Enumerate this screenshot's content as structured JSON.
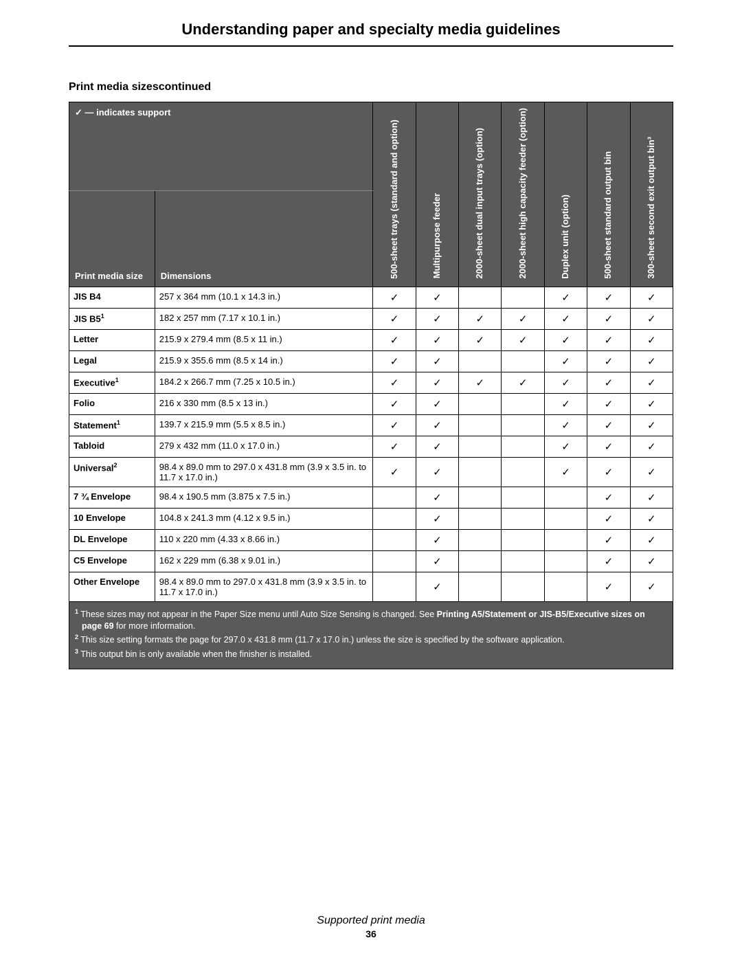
{
  "colors": {
    "header_bg": "#5a5a5a",
    "header_fg": "#ffffff",
    "border": "#000000",
    "page_bg": "#ffffff"
  },
  "fonts": {
    "body_family": "Arial, Helvetica, sans-serif",
    "title_size_pt": 16,
    "section_title_size_pt": 12,
    "cell_size_pt": 10
  },
  "page_title": "Understanding paper and specialty media guidelines",
  "section_title": "Print media sizescontinued",
  "legend": "✓ — indicates support",
  "header": {
    "size_label": "Print media size",
    "dim_label": "Dimensions",
    "cols": [
      "500-sheet trays (standard and option)",
      "Multipurpose feeder",
      "2000-sheet dual input trays (option)",
      "2000-sheet high capacity feeder (option)",
      "Duplex unit (option)",
      "500-sheet standard output bin",
      "300-sheet second exit output bin³"
    ]
  },
  "rows": [
    {
      "name": "JIS B4",
      "sup": "",
      "dim": "257 x 364 mm (10.1 x 14.3 in.)",
      "v": [
        "✓",
        "✓",
        "",
        "",
        "✓",
        "✓",
        "✓"
      ]
    },
    {
      "name": "JIS B5",
      "sup": "1",
      "dim": "182 x 257 mm (7.17 x 10.1 in.)",
      "v": [
        "✓",
        "✓",
        "✓",
        "✓",
        "✓",
        "✓",
        "✓"
      ]
    },
    {
      "name": "Letter",
      "sup": "",
      "dim": "215.9 x 279.4 mm (8.5 x 11 in.)",
      "v": [
        "✓",
        "✓",
        "✓",
        "✓",
        "✓",
        "✓",
        "✓"
      ]
    },
    {
      "name": "Legal",
      "sup": "",
      "dim": "215.9 x 355.6 mm (8.5 x 14 in.)",
      "v": [
        "✓",
        "✓",
        "",
        "",
        "✓",
        "✓",
        "✓"
      ]
    },
    {
      "name": "Executive",
      "sup": "1",
      "dim": "184.2 x 266.7 mm (7.25 x 10.5 in.)",
      "v": [
        "✓",
        "✓",
        "✓",
        "✓",
        "✓",
        "✓",
        "✓"
      ]
    },
    {
      "name": "Folio",
      "sup": "",
      "dim": "216 x 330 mm (8.5 x 13 in.)",
      "v": [
        "✓",
        "✓",
        "",
        "",
        "✓",
        "✓",
        "✓"
      ]
    },
    {
      "name": "Statement",
      "sup": "1",
      "dim": "139.7 x 215.9 mm (5.5 x 8.5 in.)",
      "v": [
        "✓",
        "✓",
        "",
        "",
        "✓",
        "✓",
        "✓"
      ]
    },
    {
      "name": "Tabloid",
      "sup": "",
      "dim": "279 x 432 mm (11.0 x 17.0 in.)",
      "v": [
        "✓",
        "✓",
        "",
        "",
        "✓",
        "✓",
        "✓"
      ]
    },
    {
      "name": "Universal",
      "sup": "2",
      "dim": "98.4 x 89.0 mm to 297.0 x 431.8 mm (3.9 x 3.5 in. to 11.7 x 17.0 in.)",
      "v": [
        "✓",
        "✓",
        "",
        "",
        "✓",
        "✓",
        "✓"
      ]
    },
    {
      "name": "7 ¾ Envelope",
      "sup": "",
      "dim": "98.4 x 190.5 mm (3.875 x 7.5 in.)",
      "v": [
        "",
        "✓",
        "",
        "",
        "",
        "✓",
        "✓"
      ]
    },
    {
      "name": "10 Envelope",
      "sup": "",
      "dim": "104.8 x 241.3 mm (4.12 x 9.5 in.)",
      "v": [
        "",
        "✓",
        "",
        "",
        "",
        "✓",
        "✓"
      ]
    },
    {
      "name": "DL Envelope",
      "sup": "",
      "dim": "110 x 220 mm (4.33 x 8.66 in.)",
      "v": [
        "",
        "✓",
        "",
        "",
        "",
        "✓",
        "✓"
      ]
    },
    {
      "name": "C5 Envelope",
      "sup": "",
      "dim": "162 x 229 mm (6.38 x 9.01 in.)",
      "v": [
        "",
        "✓",
        "",
        "",
        "",
        "✓",
        "✓"
      ]
    },
    {
      "name": "Other Envelope",
      "sup": "",
      "dim": "98.4 x 89.0 mm to 297.0 x 431.8 mm (3.9 x 3.5 in. to 11.7 x 17.0 in.)",
      "v": [
        "",
        "✓",
        "",
        "",
        "",
        "✓",
        "✓"
      ]
    }
  ],
  "footnotes": {
    "f1_a": "These sizes may not appear in the Paper Size menu until Auto Size Sensing is changed. See ",
    "f1_b": "Printing A5/Statement or JIS-B5/Executive sizes on page 69",
    "f1_c": " for more information.",
    "f2": "This size setting formats the page for 297.0 x 431.8 mm (11.7 x 17.0 in.) unless the size is specified by the software application.",
    "f3": "This output bin is only available when the finisher is installed."
  },
  "footer": {
    "title": "Supported print media",
    "page": "36"
  }
}
